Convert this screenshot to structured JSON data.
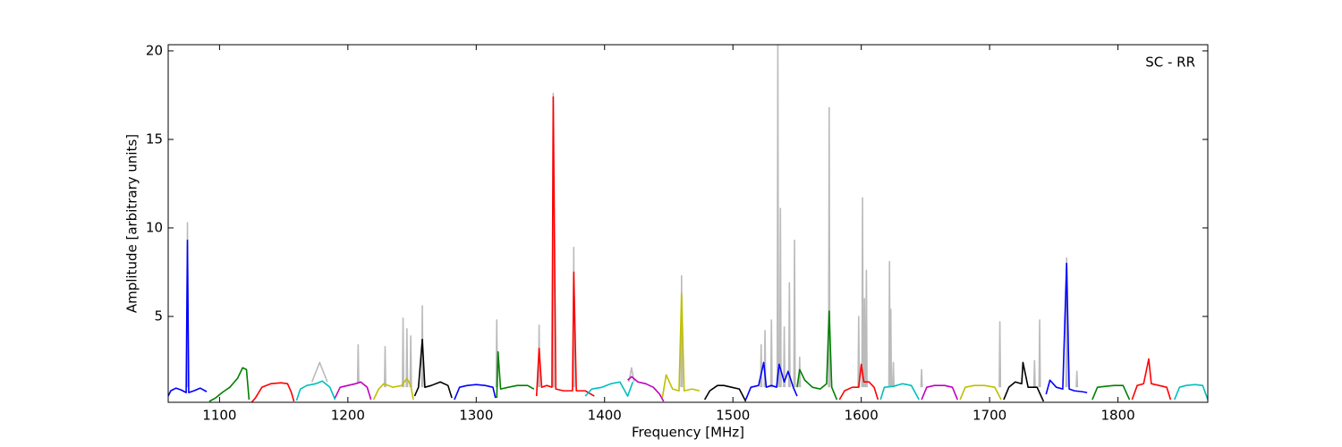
{
  "chart_data": {
    "type": "line",
    "annotation": "SC - RR",
    "xlabel": "Frequency [MHz]",
    "ylabel": "Amplitude [arbitrary units]",
    "xlim": [
      1060,
      1870
    ],
    "xticks": [
      1100,
      1200,
      1300,
      1400,
      1500,
      1600,
      1700,
      1800
    ],
    "ylim": [
      0.15,
      20.35
    ],
    "yticks": [
      5,
      10,
      15,
      20
    ],
    "grid": false,
    "series": [
      {
        "color": "#bbbbbb",
        "x": [
          1074.5,
          1075,
          1075.5,
          null,
          1172,
          1178,
          1184,
          null,
          1207.5,
          1208,
          1208.5,
          null,
          1228.5,
          1229,
          1229.5,
          null,
          1242.5,
          1243,
          1243.5,
          null,
          1245.5,
          1246,
          1246.5,
          null,
          1248.5,
          1249,
          1249.5,
          null,
          1257.5,
          1258,
          1258.5,
          null,
          1315.5,
          1316,
          1316.5,
          null,
          1348.5,
          1349,
          1349.5,
          null,
          1359.5,
          1360,
          1360.5,
          null,
          1375.5,
          1376,
          1376.5,
          null,
          1419,
          1421,
          1423,
          null,
          1459.5,
          1460,
          1460.5,
          null,
          1521.5,
          1522,
          1522.5,
          null,
          1524.5,
          1525,
          1525.5,
          null,
          1529.5,
          1530,
          1530.5,
          null,
          1534.5,
          1535,
          1535.5,
          null,
          1536.5,
          1537,
          1537.5,
          null,
          1539.5,
          1540,
          1540.5,
          null,
          1543.5,
          1544,
          1544.5,
          null,
          1547.5,
          1548,
          1548.5,
          null,
          1551.5,
          1552,
          1552.5,
          null,
          1574.5,
          1575,
          1575.5,
          null,
          1597.5,
          1598,
          1598.5,
          null,
          1600.5,
          1601,
          1601.5,
          null,
          1602,
          1602.5,
          1603,
          null,
          1603.5,
          1604,
          1604.5,
          null,
          1621.5,
          1622,
          1622.5,
          null,
          1622.5,
          1623,
          1623.5,
          null,
          1624.5,
          1625,
          1625.5,
          null,
          1646.5,
          1647,
          1647.5,
          null,
          1707.5,
          1708,
          1708.5,
          null,
          1734.5,
          1735,
          1735.5,
          null,
          1738.5,
          1739,
          1739.5,
          null,
          1759.5,
          1760,
          1760.5,
          null,
          1767.5,
          1768,
          1768.5
        ],
        "values": [
          1.0,
          10.3,
          1.0,
          null,
          1.3,
          2.4,
          1.3,
          null,
          1.2,
          3.4,
          1.2,
          null,
          1.0,
          3.3,
          1.0,
          null,
          1.0,
          4.9,
          1.0,
          null,
          1.0,
          4.3,
          1.0,
          null,
          1.0,
          3.9,
          1.0,
          null,
          1.0,
          5.6,
          1.0,
          null,
          1.0,
          4.8,
          1.0,
          null,
          1.0,
          4.5,
          1.0,
          null,
          1.0,
          17.6,
          1.0,
          null,
          1.0,
          8.9,
          1.0,
          null,
          1.3,
          2.1,
          1.3,
          null,
          1.0,
          7.3,
          1.0,
          null,
          1.0,
          3.4,
          1.0,
          null,
          1.0,
          4.2,
          1.0,
          null,
          1.0,
          4.8,
          1.0,
          null,
          1.0,
          20.4,
          1.0,
          null,
          1.0,
          11.1,
          1.0,
          null,
          1.0,
          4.4,
          1.0,
          null,
          1.0,
          6.9,
          1.0,
          null,
          1.0,
          9.3,
          1.0,
          null,
          1.0,
          2.7,
          1.0,
          null,
          1.0,
          16.8,
          1.0,
          null,
          1.0,
          5.0,
          1.0,
          null,
          1.0,
          11.7,
          1.0,
          null,
          1.0,
          6.0,
          1.0,
          null,
          1.0,
          7.6,
          1.0,
          null,
          1.0,
          8.1,
          1.0,
          null,
          1.0,
          5.4,
          1.0,
          null,
          1.0,
          2.4,
          1.0,
          null,
          1.0,
          2.0,
          1.0,
          null,
          1.0,
          4.7,
          1.0,
          null,
          1.0,
          2.5,
          1.0,
          null,
          1.0,
          4.8,
          1.0,
          null,
          1.0,
          8.3,
          1.0,
          null,
          1.0,
          1.9,
          1.0
        ]
      },
      {
        "color": "#0000ff",
        "x": [
          1060,
          1062,
          1066,
          1070,
          1074,
          1075,
          1076,
          1080,
          1085,
          1090
        ],
        "values": [
          0.5,
          0.8,
          0.95,
          0.85,
          0.7,
          9.3,
          0.7,
          0.8,
          0.95,
          0.75
        ]
      },
      {
        "color": "#008000",
        "x": [
          1092,
          1097,
          1102,
          1108,
          1114,
          1118,
          1121,
          1123
        ],
        "values": [
          0.2,
          0.4,
          0.7,
          1.0,
          1.5,
          2.1,
          2.0,
          0.3
        ]
      },
      {
        "color": "#ff0000",
        "x": [
          1125,
          1128,
          1133,
          1140,
          1148,
          1153,
          1156,
          1158
        ],
        "values": [
          0.15,
          0.4,
          1.0,
          1.2,
          1.25,
          1.2,
          0.7,
          0.2
        ]
      },
      {
        "color": "#00bfbf",
        "x": [
          1160,
          1163,
          1168,
          1175,
          1180,
          1186,
          1190
        ],
        "values": [
          0.25,
          0.9,
          1.1,
          1.2,
          1.35,
          1.0,
          0.3
        ]
      },
      {
        "color": "#bf00bf",
        "x": [
          1190,
          1194,
          1200,
          1206,
          1210,
          1215,
          1218
        ],
        "values": [
          0.4,
          1.0,
          1.1,
          1.2,
          1.3,
          1.0,
          0.3
        ]
      },
      {
        "color": "#bfbf00",
        "x": [
          1220,
          1224,
          1228,
          1235,
          1242,
          1246,
          1249,
          1251
        ],
        "values": [
          0.3,
          0.9,
          1.2,
          1.0,
          1.1,
          1.5,
          1.1,
          0.3
        ]
      },
      {
        "color": "#000000",
        "x": [
          1252,
          1255,
          1258,
          1260,
          1265,
          1272,
          1278,
          1281
        ],
        "values": [
          0.5,
          1.0,
          3.7,
          1.0,
          1.1,
          1.3,
          1.1,
          0.4
        ]
      },
      {
        "color": "#0000ff",
        "x": [
          1283,
          1287,
          1293,
          1300,
          1307,
          1313,
          1315
        ],
        "values": [
          0.3,
          1.0,
          1.1,
          1.15,
          1.1,
          1.0,
          0.4
        ]
      },
      {
        "color": "#008000",
        "x": [
          1316,
          1317,
          1319,
          1325,
          1332,
          1340,
          1345
        ],
        "values": [
          0.4,
          3.0,
          0.9,
          1.0,
          1.1,
          1.1,
          0.9
        ]
      },
      {
        "color": "#ff0000",
        "x": [
          1347,
          1349,
          1351,
          1355,
          1359,
          1360,
          1362,
          1368,
          1375,
          1376,
          1378,
          1385,
          1392
        ],
        "values": [
          0.5,
          3.2,
          1.0,
          1.1,
          1.0,
          17.4,
          0.9,
          0.8,
          0.8,
          7.5,
          0.8,
          0.8,
          0.5
        ]
      },
      {
        "color": "#00bfbf",
        "x": [
          1385,
          1390,
          1398,
          1405,
          1412,
          1418,
          1422
        ],
        "values": [
          0.5,
          0.9,
          1.0,
          1.2,
          1.3,
          0.5,
          1.3
        ]
      },
      {
        "color": "#bf00bf",
        "x": [
          1418,
          1421,
          1426,
          1432,
          1438,
          1443,
          1446
        ],
        "values": [
          1.4,
          1.6,
          1.3,
          1.2,
          1.0,
          0.6,
          0.2
        ]
      },
      {
        "color": "#bfbf00",
        "x": [
          1445,
          1448,
          1453,
          1458,
          1460,
          1462,
          1468,
          1474
        ],
        "values": [
          0.4,
          1.7,
          0.9,
          0.8,
          6.3,
          0.8,
          0.9,
          0.8
        ]
      },
      {
        "color": "#000000",
        "x": [
          1478,
          1482,
          1488,
          1493,
          1499,
          1505,
          1510
        ],
        "values": [
          0.3,
          0.8,
          1.1,
          1.1,
          1.0,
          0.9,
          0.2
        ]
      },
      {
        "color": "#0000ff",
        "x": [
          1510,
          1514,
          1520,
          1524,
          1526,
          1530,
          1534,
          1536,
          1540,
          1543,
          1547,
          1550
        ],
        "values": [
          0.3,
          1.0,
          1.1,
          2.4,
          1.0,
          1.1,
          1.0,
          2.3,
          1.3,
          1.9,
          1.0,
          0.5
        ]
      },
      {
        "color": "#008000",
        "x": [
          1550,
          1552,
          1556,
          1562,
          1568,
          1573,
          1575,
          1577,
          1581
        ],
        "values": [
          1.0,
          2.0,
          1.4,
          1.0,
          0.9,
          1.2,
          5.3,
          1.0,
          0.3
        ]
      },
      {
        "color": "#ff0000",
        "x": [
          1583,
          1587,
          1593,
          1598,
          1600,
          1602,
          1606,
          1610,
          1613
        ],
        "values": [
          0.3,
          0.8,
          1.0,
          1.0,
          2.3,
          1.3,
          1.3,
          1.0,
          0.3
        ]
      },
      {
        "color": "#00bfbf",
        "x": [
          1615,
          1618,
          1625,
          1632,
          1639,
          1645
        ],
        "values": [
          0.3,
          1.0,
          1.05,
          1.2,
          1.1,
          0.3
        ]
      },
      {
        "color": "#bf00bf",
        "x": [
          1647,
          1651,
          1657,
          1665,
          1671,
          1675
        ],
        "values": [
          0.3,
          1.0,
          1.1,
          1.1,
          1.0,
          0.3
        ]
      },
      {
        "color": "#bfbf00",
        "x": [
          1677,
          1681,
          1688,
          1696,
          1704,
          1709
        ],
        "values": [
          0.3,
          1.0,
          1.1,
          1.1,
          1.0,
          0.3
        ]
      },
      {
        "color": "#000000",
        "x": [
          1711,
          1715,
          1720,
          1725,
          1726,
          1730,
          1737,
          1742
        ],
        "values": [
          0.3,
          1.0,
          1.3,
          1.2,
          2.4,
          1.0,
          1.0,
          0.2
        ]
      },
      {
        "color": "#0000ff",
        "x": [
          1744,
          1747,
          1752,
          1757,
          1760,
          1762,
          1766,
          1772,
          1776
        ],
        "values": [
          0.6,
          1.4,
          1.0,
          0.9,
          8.0,
          0.9,
          0.8,
          0.75,
          0.7
        ]
      },
      {
        "color": "#008000",
        "x": [
          1780,
          1784,
          1790,
          1797,
          1804,
          1809
        ],
        "values": [
          0.3,
          1.0,
          1.05,
          1.1,
          1.1,
          0.3
        ]
      },
      {
        "color": "#ff0000",
        "x": [
          1811,
          1815,
          1820,
          1824,
          1826,
          1832,
          1838,
          1841
        ],
        "values": [
          0.3,
          1.1,
          1.2,
          2.6,
          1.2,
          1.1,
          1.0,
          0.3
        ]
      },
      {
        "color": "#00bfbf",
        "x": [
          1844,
          1848,
          1853,
          1860,
          1866,
          1870
        ],
        "values": [
          0.3,
          1.0,
          1.1,
          1.15,
          1.1,
          0.3
        ]
      }
    ]
  }
}
